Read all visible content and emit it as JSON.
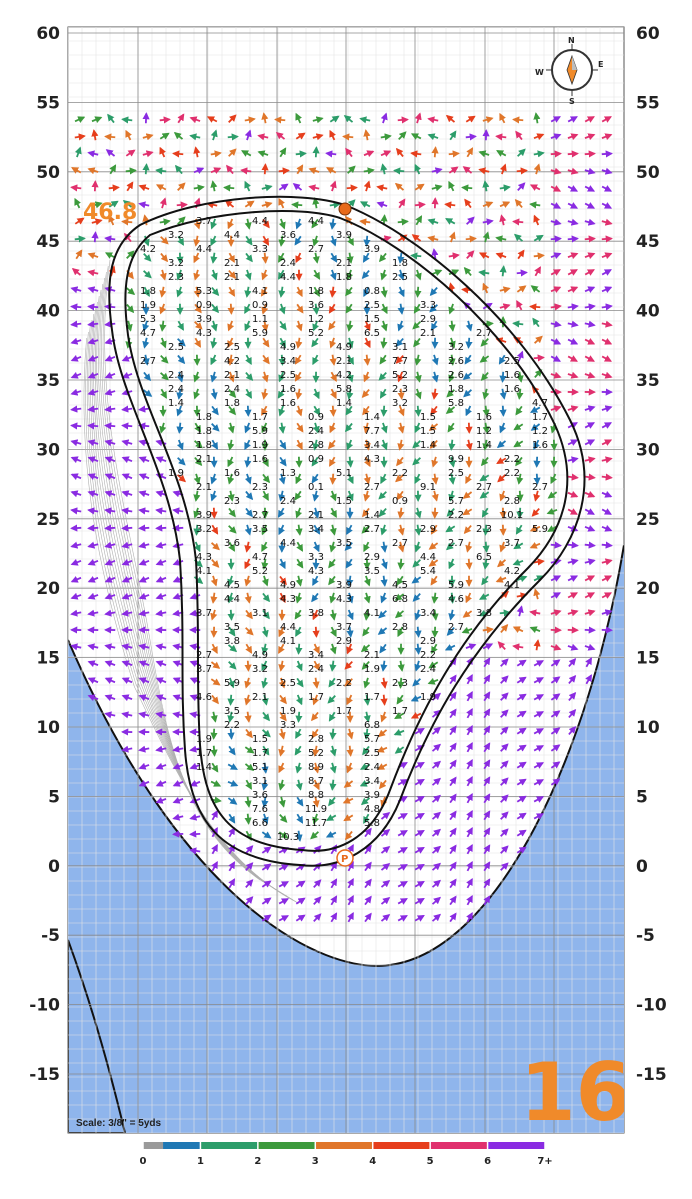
{
  "hole_number": "16",
  "elevation_value": "46.8",
  "scale_text": "Scale: 3/8\" = 5yds",
  "y_axis_labels": [
    "60",
    "55",
    "50",
    "45",
    "40",
    "35",
    "30",
    "25",
    "20",
    "15",
    "10",
    "5",
    "0",
    "-5",
    "-10",
    "-15"
  ],
  "legend": {
    "labels": [
      "0",
      "1",
      "2",
      "3",
      "4",
      "5",
      "6",
      "7+"
    ],
    "colors": [
      "#9a9a9a",
      "#1f78b4",
      "#2c9d6a",
      "#3c9a3c",
      "#e0762a",
      "#e63e1c",
      "#e0306e",
      "#8a2be2"
    ]
  },
  "compass": {
    "n": "N",
    "e": "E",
    "s": "S",
    "w": "W"
  },
  "colors": {
    "water": "#8fb5ec",
    "accent": "#f08a2a",
    "green_outline": "#111111"
  },
  "slope_labels": [
    "3.7",
    "4.4",
    "4.4",
    "3.2",
    "4.4",
    "3.6",
    "3.9",
    "4.2",
    "4.4",
    "3.3",
    "2.7",
    "3.9",
    "3.2",
    "2.1",
    "2.4",
    "2.1",
    "1.8",
    "2.3",
    "2.1",
    "4.4",
    "1.8",
    "2.5",
    "1.8",
    "5.3",
    "4.1",
    "1.8",
    "0.8",
    "1.9",
    "0.9",
    "0.9",
    "3.6",
    "2.5",
    "3.3",
    "5.3",
    "3.9",
    "1.1",
    "1.2",
    "1.5",
    "2.9",
    "4.7",
    "4.3",
    "5.9",
    "5.2",
    "6.5",
    "2.1",
    "2.7",
    "2.5",
    "2.5",
    "4.9",
    "4.9",
    "3.1",
    "3.2",
    "2.7",
    "4.2",
    "3.4",
    "2.1",
    "7.7",
    "2.6",
    "2.5",
    "2.4",
    "2.1",
    "2.5",
    "4.2",
    "5.2",
    "2.6",
    "1.6",
    "2.4",
    "2.4",
    "1.6",
    "5.8",
    "2.3",
    "1.8",
    "1.6",
    "1.4",
    "1.8",
    "1.6",
    "1.4",
    "3.2",
    "5.8",
    "4.7",
    "1.8",
    "1.7",
    "0.9",
    "1.4",
    "1.5",
    "1.6",
    "1.7",
    "1.8",
    "5.9",
    "2.4",
    "7.7",
    "1.5",
    "1.2",
    "1.2",
    "1.8",
    "1.9",
    "2.8",
    "3.4",
    "1.4",
    "1.4",
    "1.6",
    "2.1",
    "1.6",
    "0.9",
    "4.3",
    "9.9",
    "2.2",
    "1.9",
    "1.6",
    "1.3",
    "5.1",
    "2.2",
    "2.5",
    "2.2",
    "2.1",
    "2.3",
    "0.1",
    "2.7",
    "9.1",
    "2.7",
    "2.7",
    "2.3",
    "2.4",
    "1.5",
    "0.9",
    "5.7",
    "2.8",
    "3.9",
    "2.7",
    "2.1",
    "1.4",
    "2.2",
    "10.1",
    "3.2",
    "3.5",
    "3.4",
    "2.7",
    "2.9",
    "2.3",
    "5.9",
    "3.6",
    "4.4",
    "3.5",
    "2.7",
    "2.7",
    "3.7",
    "4.3",
    "4.7",
    "3.3",
    "2.9",
    "4.4",
    "6.5",
    "4.1",
    "5.2",
    "4.3",
    "3.5",
    "5.4",
    "4.2",
    "4.5",
    "4.9",
    "3.9",
    "4.5",
    "5.9",
    "4.1",
    "4.4",
    "4.3",
    "4.3",
    "6.8",
    "4.6",
    "3.7",
    "3.1",
    "3.8",
    "4.1",
    "3.4",
    "3.8",
    "3.5",
    "4.4",
    "3.7",
    "2.8",
    "2.7",
    "3.8",
    "4.1",
    "2.9",
    "2.9",
    "2.7",
    "4.9",
    "3.4",
    "2.1",
    "2.2",
    "3.7",
    "3.2",
    "2.4",
    "1.9",
    "2.4",
    "5.9",
    "2.5",
    "2.2",
    "2.3",
    "4.6",
    "2.1",
    "1.7",
    "1.7",
    "1.9",
    "3.5",
    "1.9",
    "1.7",
    "1.7",
    "2.2",
    "3.3",
    "6.8",
    "1.9",
    "1.5",
    "2.8",
    "5.7",
    "1.7",
    "1.7",
    "5.2",
    "2.5",
    "1.4",
    "5.1",
    "8.9",
    "2.4",
    "3.1",
    "8.7",
    "3.4",
    "3.6",
    "8.8",
    "3.9",
    "7.6",
    "11.9",
    "4.8",
    "6.6",
    "11.7",
    "5.8",
    "10.3"
  ]
}
